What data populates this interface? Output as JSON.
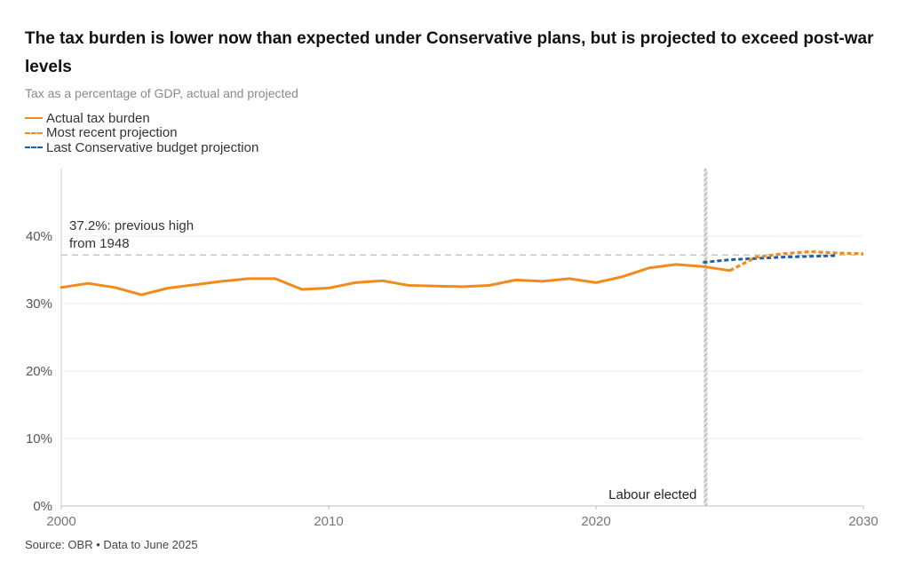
{
  "chart_data": {
    "type": "line",
    "title": "The tax burden is lower now than expected under Conservative plans, but is projected to exceed post-war levels",
    "subtitle": "Tax as a percentage of GDP, actual and projected",
    "source": "Source: OBR • Data to June 2025",
    "xlim": [
      2000,
      2030
    ],
    "ylim": [
      0,
      50
    ],
    "x_ticks": [
      2000,
      2010,
      2020,
      2030
    ],
    "x_tick_labels": [
      "2000",
      "2010",
      "2020",
      "2030"
    ],
    "y_ticks": [
      0,
      10,
      20,
      30,
      40
    ],
    "y_tick_labels": [
      "0%",
      "10%",
      "20%",
      "30%",
      "40%"
    ],
    "colors": {
      "actual": "#f28a1c",
      "recent_projection": "#f28a1c",
      "conservative_projection": "#1c5fa8",
      "reference": "#c8c8c8",
      "grid": "#ebebeb"
    },
    "series": [
      {
        "key": "actual",
        "name": "Actual tax burden",
        "style": "solid",
        "x": [
          2000,
          2001,
          2002,
          2003,
          2004,
          2005,
          2006,
          2007,
          2008,
          2009,
          2010,
          2011,
          2012,
          2013,
          2014,
          2015,
          2016,
          2017,
          2018,
          2019,
          2020,
          2021,
          2022,
          2023,
          2024,
          2025
        ],
        "values": [
          32.4,
          33.0,
          32.4,
          31.3,
          32.3,
          32.8,
          33.3,
          33.7,
          33.7,
          32.1,
          32.3,
          33.1,
          33.4,
          32.7,
          32.6,
          32.5,
          32.7,
          33.5,
          33.3,
          33.7,
          33.1,
          34.0,
          35.3,
          35.8,
          35.5,
          34.9
        ]
      },
      {
        "key": "recent_projection",
        "name": "Most recent projection",
        "style": "dashed",
        "x": [
          2025,
          2026,
          2027,
          2028,
          2029,
          2030
        ],
        "values": [
          34.9,
          36.9,
          37.4,
          37.7,
          37.5,
          37.4
        ]
      },
      {
        "key": "conservative_projection",
        "name": "Last Conservative budget projection",
        "style": "dashed",
        "x": [
          2024,
          2025,
          2026,
          2027,
          2028,
          2029
        ],
        "values": [
          36.1,
          36.5,
          36.7,
          36.9,
          37.0,
          37.1
        ]
      }
    ],
    "reference_line": {
      "value": 37.2,
      "label_line1": "37.2%: previous high",
      "label_line2": "from 1948"
    },
    "annotation": {
      "x": 2024.1,
      "label": "Labour elected"
    },
    "legend_placement": "top-left"
  }
}
